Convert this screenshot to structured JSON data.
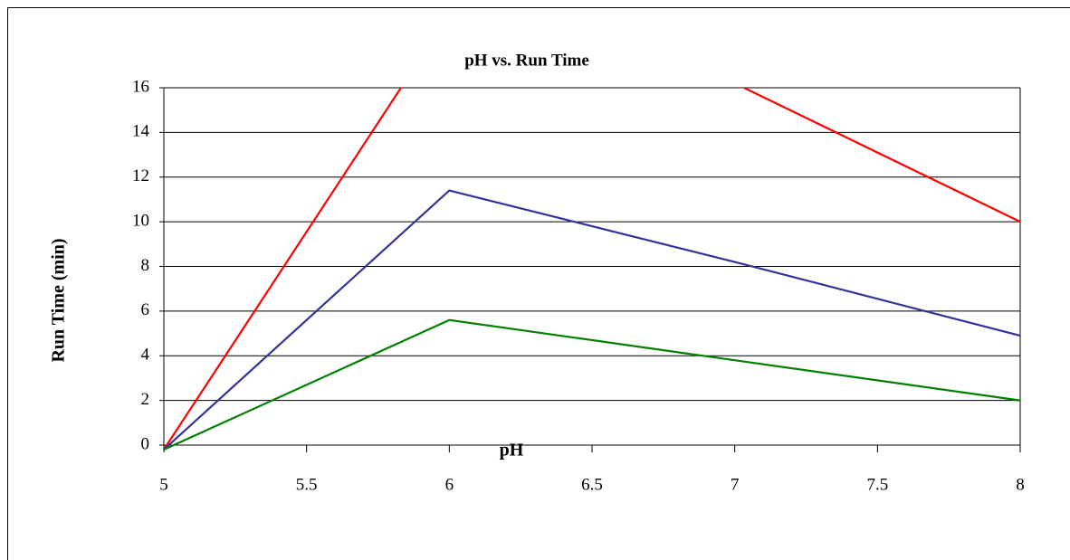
{
  "chart_data": {
    "type": "line",
    "title": "pH vs. Run Time",
    "x_label": "pH",
    "y_label": "Run Time (min)",
    "x": [
      5,
      6,
      7,
      8
    ],
    "series": [
      {
        "color": "#ff0000",
        "values": [
          -0.2,
          19.3,
          16.2,
          10
        ]
      },
      {
        "color": "#333399",
        "values": [
          -0.2,
          11.4,
          8.2,
          4.9
        ]
      },
      {
        "color": "#008000",
        "values": [
          -0.2,
          5.6,
          3.8,
          2.0
        ]
      }
    ],
    "xlim": [
      5,
      8
    ],
    "xticks": [
      5,
      5.5,
      6,
      6.5,
      7,
      7.5,
      8
    ],
    "ylim": [
      0,
      16
    ],
    "yticks": [
      0,
      2,
      4,
      6,
      8,
      10,
      12,
      14,
      16
    ],
    "grid": true
  }
}
